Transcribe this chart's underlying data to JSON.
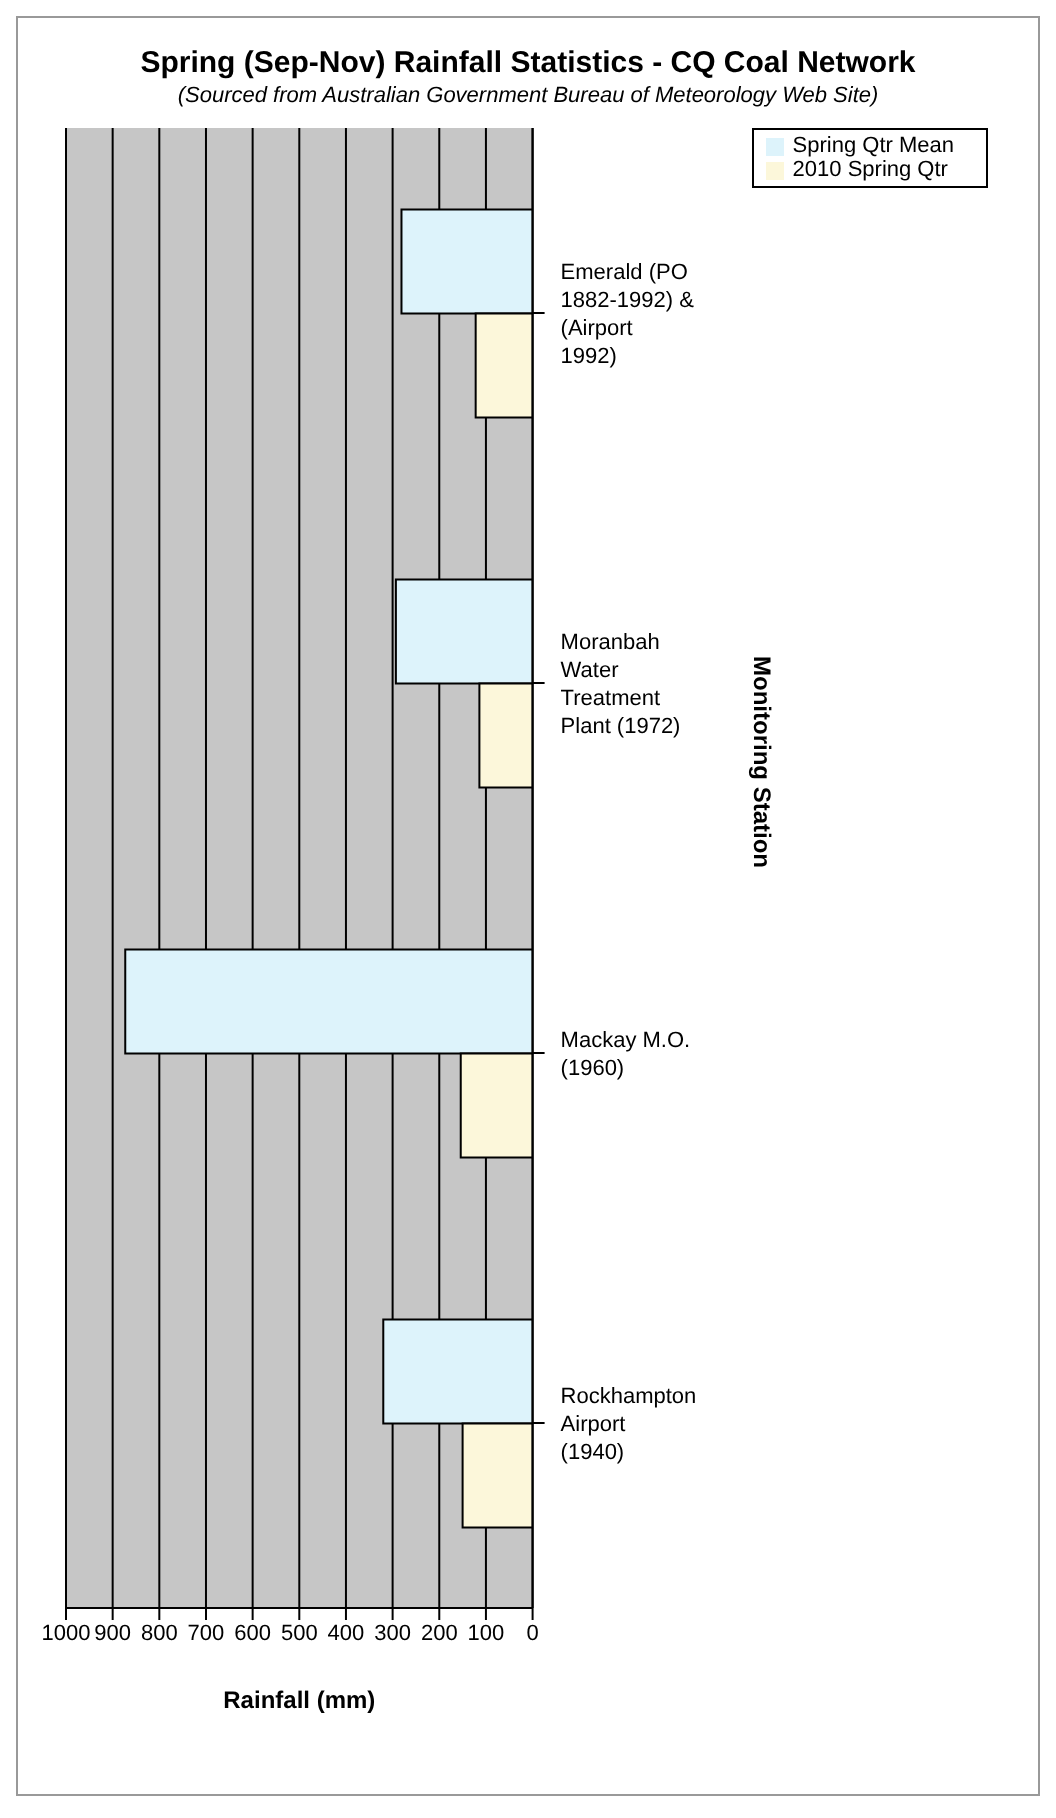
{
  "chart_data": {
    "type": "bar",
    "orientation": "horizontal",
    "title": "Spring (Sep-Nov) Rainfall Statistics - CQ Coal Network",
    "subtitle": "(Sourced from Australian Government Bureau of Meteorology Web Site)",
    "xlabel": "Rainfall (mm)",
    "ylabel": "Monitoring Station",
    "categories": [
      "Emerald (PO 1882-1992) & (Airport 1992)",
      "Moranbah Water Treatment Plant (1972)",
      "Mackay M.O. (1960)",
      "Rockhampton Airport (1940)"
    ],
    "series": [
      {
        "name": "Spring Qtr Mean",
        "color": "#ddf3fb",
        "values": [
          281,
          293,
          873,
          320
        ]
      },
      {
        "name": "2010 Spring Qtr",
        "color": "#fcf7da",
        "values": [
          122,
          114,
          154,
          150
        ]
      }
    ],
    "xlim": [
      1000,
      0
    ],
    "xticks": [
      1000,
      900,
      800,
      700,
      600,
      500,
      400,
      300,
      200,
      100,
      0
    ],
    "grid": "x",
    "legend": "top right"
  }
}
